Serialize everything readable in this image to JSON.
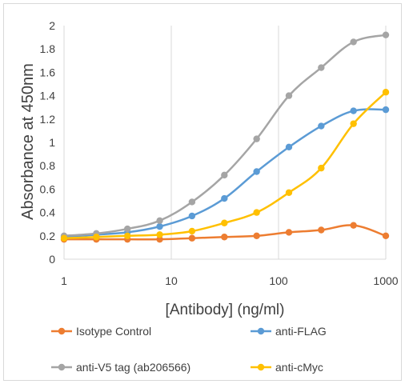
{
  "chart_data": {
    "type": "line",
    "title": "",
    "xlabel": "[Antibody] (ng/ml)",
    "ylabel": "Absorbance at 450nm",
    "x_scale": "log",
    "xlim": [
      1,
      1000
    ],
    "ylim": [
      0,
      2
    ],
    "x_ticks": [
      "1",
      "10",
      "100",
      "1000"
    ],
    "y_ticks": [
      "0",
      "0.2",
      "0.4",
      "0.6",
      "0.8",
      "1",
      "1.2",
      "1.4",
      "1.6",
      "1.8",
      "2"
    ],
    "grid": "vertical major",
    "legend_position": "bottom",
    "x": [
      1,
      2,
      3.9,
      7.8,
      15.6,
      31.25,
      62.5,
      125,
      250,
      500,
      1000
    ],
    "series": [
      {
        "name": "Isotype Control",
        "color": "#ED7D31",
        "values": [
          0.17,
          0.17,
          0.17,
          0.17,
          0.18,
          0.19,
          0.2,
          0.23,
          0.25,
          0.29,
          0.2
        ]
      },
      {
        "name": "anti-FLAG",
        "color": "#5B9BD5",
        "values": [
          0.19,
          0.21,
          0.23,
          0.28,
          0.37,
          0.52,
          0.75,
          0.96,
          1.14,
          1.27,
          1.28
        ]
      },
      {
        "name": "anti-V5 tag (ab206566)",
        "color": "#A5A5A5",
        "values": [
          0.2,
          0.22,
          0.26,
          0.33,
          0.49,
          0.72,
          1.03,
          1.4,
          1.64,
          1.86,
          1.92
        ]
      },
      {
        "name": "anti-cMyc",
        "color": "#FFC000",
        "values": [
          0.18,
          0.19,
          0.2,
          0.21,
          0.24,
          0.31,
          0.4,
          0.57,
          0.78,
          1.16,
          1.43
        ]
      }
    ]
  }
}
